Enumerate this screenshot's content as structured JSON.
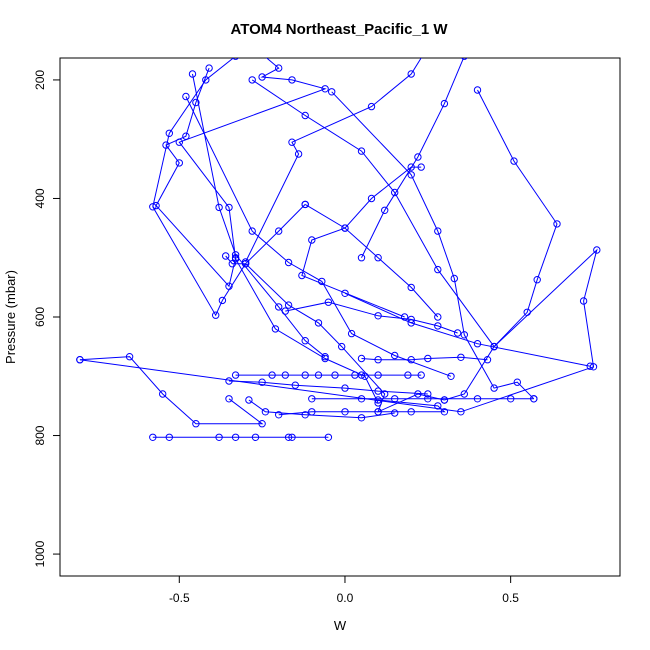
{
  "chart_data": {
    "type": "line",
    "title": "ATOM4 Northeast_Pacific_1 W",
    "xlabel": "W",
    "ylabel": "Pressure (mbar)",
    "xlim": [
      -0.86,
      0.83
    ],
    "ylim": [
      1037,
      163
    ],
    "y_reversed": true,
    "grid": false,
    "legend": "none",
    "line_color": "#0000ff",
    "marker": "open-circle",
    "xticks": [
      -0.5,
      0.0,
      0.5
    ],
    "xtick_labels": [
      "-0.5",
      "0.0",
      "0.5"
    ],
    "yticks": [
      200,
      400,
      600,
      800,
      1000
    ],
    "ytick_labels": [
      "200",
      "400",
      "600",
      "800",
      "1000"
    ],
    "series": [
      {
        "x": [
          0.36,
          0.3,
          0.22,
          0.12,
          0.05
        ],
        "y": [
          160,
          240,
          330,
          420,
          500
        ]
      },
      {
        "x": [
          0.4,
          0.51,
          0.64,
          0.58,
          0.55,
          0.45,
          0.36,
          0.3
        ],
        "y": [
          217,
          337,
          443,
          537,
          592,
          650,
          730,
          740
        ]
      },
      {
        "x": [
          0.25,
          0.2,
          0.08,
          -0.16,
          -0.14,
          -0.3
        ],
        "y": [
          145,
          190,
          245,
          305,
          325,
          507
        ]
      },
      {
        "x": [
          -0.04,
          0.2,
          0.28,
          0.33,
          0.36,
          0.45,
          0.52,
          0.57
        ],
        "y": [
          220,
          360,
          455,
          535,
          630,
          720,
          710,
          738
        ]
      },
      {
        "x": [
          -0.41,
          -0.45,
          -0.48,
          -0.54,
          -0.5,
          -0.57,
          -0.35,
          -0.33
        ],
        "y": [
          180,
          238,
          295,
          310,
          340,
          412,
          548,
          500
        ]
      },
      {
        "x": [
          -0.3,
          -0.2,
          -0.25,
          -0.16,
          -0.06,
          -0.5,
          -0.35,
          -0.33,
          -0.21,
          -0.06,
          0.06,
          0.1
        ],
        "y": [
          133,
          180,
          195,
          200,
          215,
          305,
          415,
          502,
          620,
          670,
          700,
          745
        ]
      },
      {
        "x": [
          -0.36,
          -0.34,
          -0.3,
          -0.17,
          -0.08,
          -0.01,
          0.12,
          0.1,
          0.22,
          0.3
        ],
        "y": [
          497,
          510,
          510,
          580,
          610,
          650,
          730,
          760,
          730,
          740
        ]
      },
      {
        "x": [
          -0.46,
          -0.38,
          -0.33,
          -0.2,
          -0.12,
          -0.06
        ],
        "y": [
          190,
          415,
          495,
          583,
          640,
          667
        ]
      },
      {
        "x": [
          -0.12,
          -0.2,
          -0.3,
          -0.37,
          -0.39,
          -0.58,
          -0.53,
          -0.42,
          -0.33
        ],
        "y": [
          410,
          455,
          510,
          572,
          597,
          414,
          290,
          200,
          160
        ]
      },
      {
        "x": [
          -0.48,
          -0.28,
          -0.17,
          -0.07,
          0.02,
          0.15,
          0.32
        ],
        "y": [
          228,
          455,
          508,
          540,
          628,
          665,
          700
        ]
      },
      {
        "x": [
          0.23,
          0.2,
          0.08,
          0.0,
          -0.1,
          -0.13,
          0.18
        ],
        "y": [
          347,
          347,
          400,
          450,
          470,
          530,
          600
        ]
      },
      {
        "x": [
          -0.28,
          -0.12,
          0.05,
          0.15,
          0.28,
          0.45
        ],
        "y": [
          200,
          260,
          320,
          390,
          520,
          650
        ]
      },
      {
        "x": [
          -0.8,
          -0.65,
          -0.55,
          -0.45,
          -0.25,
          -0.35
        ],
        "y": [
          672,
          667,
          730,
          780,
          780,
          738
        ]
      },
      {
        "x": [
          -0.8,
          0.35,
          0.75,
          0.72,
          0.76,
          0.45
        ],
        "y": [
          672,
          760,
          684,
          573,
          487,
          650
        ]
      },
      {
        "x": [
          -0.58,
          -0.53,
          -0.38,
          -0.33,
          -0.27,
          -0.17,
          -0.16,
          -0.05
        ],
        "y": [
          803,
          803,
          803,
          803,
          803,
          803,
          803,
          803
        ]
      },
      {
        "x": [
          -0.33,
          -0.22,
          -0.18,
          -0.12,
          -0.08,
          -0.03,
          0.03,
          0.05,
          0.1,
          0.19,
          0.23
        ],
        "y": [
          698,
          698,
          698,
          698,
          698,
          698,
          698,
          698,
          698,
          698,
          698
        ]
      },
      {
        "x": [
          -0.2,
          -0.1,
          0.0,
          0.1,
          0.2,
          0.3,
          0.28,
          0.1
        ],
        "y": [
          765,
          760,
          760,
          760,
          760,
          760,
          750,
          740
        ]
      },
      {
        "x": [
          -0.1,
          0.05,
          0.15,
          0.25,
          0.4,
          0.5,
          0.57
        ],
        "y": [
          738,
          738,
          738,
          738,
          738,
          738,
          738
        ]
      },
      {
        "x": [
          -0.35,
          -0.25,
          -0.15,
          0.0,
          0.1,
          0.25
        ],
        "y": [
          708,
          710,
          715,
          720,
          725,
          730
        ]
      },
      {
        "x": [
          0.05,
          0.1,
          0.2,
          0.25,
          0.35,
          0.43
        ],
        "y": [
          670,
          672,
          672,
          670,
          668,
          672
        ]
      },
      {
        "x": [
          -0.18,
          -0.05,
          0.1,
          0.2,
          0.28,
          0.34
        ],
        "y": [
          590,
          575,
          598,
          604,
          615,
          627
        ]
      },
      {
        "x": [
          0.0,
          0.2,
          0.4,
          0.74
        ],
        "y": [
          560,
          610,
          645,
          683
        ]
      },
      {
        "x": [
          -0.12,
          0.0,
          0.1,
          0.2,
          0.28
        ],
        "y": [
          410,
          450,
          500,
          550,
          600
        ]
      },
      {
        "x": [
          -0.29,
          -0.24,
          -0.12,
          0.05,
          0.15
        ],
        "y": [
          740,
          760,
          765,
          770,
          762
        ]
      }
    ]
  }
}
